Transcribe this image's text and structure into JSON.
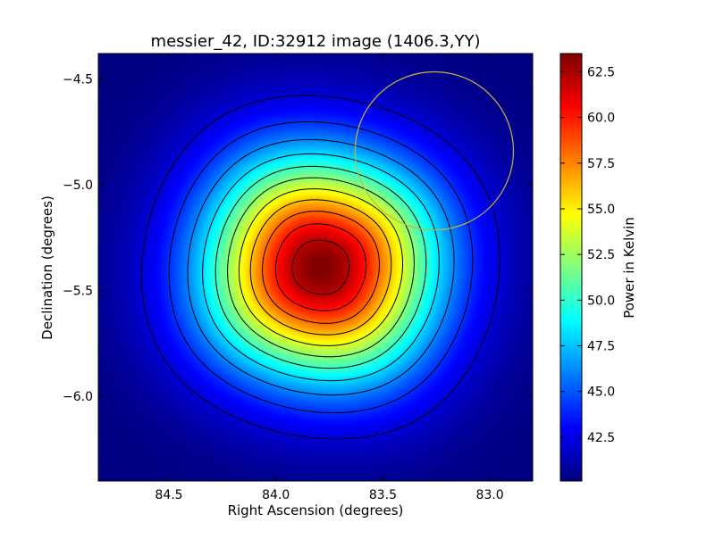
{
  "chart_data": {
    "type": "heatmap",
    "title": "messier_42, ID:32912 image (1406.3,YY)",
    "xlabel": "Right Ascension (degrees)",
    "ylabel": "Declination (degrees)",
    "colorbar_label": "Power in Kelvin",
    "colormap": "jet",
    "x_inverted": true,
    "xlim": [
      84.83,
      82.8
    ],
    "ylim": [
      -6.4,
      -4.38
    ],
    "x_ticks": [
      {
        "value": 84.5,
        "label": "84.5"
      },
      {
        "value": 84.0,
        "label": "84.0"
      },
      {
        "value": 83.5,
        "label": "83.5"
      },
      {
        "value": 83.0,
        "label": "83.0"
      }
    ],
    "y_ticks": [
      {
        "value": -4.5,
        "label": "−4.5"
      },
      {
        "value": -5.0,
        "label": "−5.0"
      },
      {
        "value": -5.5,
        "label": "−5.5"
      },
      {
        "value": -6.0,
        "label": "−6.0"
      }
    ],
    "colorbar_range": [
      40.1,
      63.5
    ],
    "colorbar_ticks": [
      {
        "value": 42.5,
        "label": "42.5"
      },
      {
        "value": 45.0,
        "label": "45.0"
      },
      {
        "value": 47.5,
        "label": "47.5"
      },
      {
        "value": 50.0,
        "label": "50.0"
      },
      {
        "value": 52.5,
        "label": "52.5"
      },
      {
        "value": 55.0,
        "label": "55.0"
      },
      {
        "value": 57.5,
        "label": "57.5"
      },
      {
        "value": 60.0,
        "label": "60.0"
      },
      {
        "value": 62.5,
        "label": "62.5"
      }
    ],
    "peak": {
      "ra": 83.79,
      "dec": -5.39,
      "value": 63.5
    },
    "background_level": 40.1,
    "contour_levels": [
      42.1,
      44.1,
      46.1,
      48.1,
      50.1,
      52.1,
      54.1,
      56.1,
      58.1,
      60.1,
      62.1
    ],
    "circle": {
      "ra": 83.26,
      "dec": -4.84,
      "radius_deg": 0.37,
      "color": "#c8b43c"
    },
    "contour_color": "#000000",
    "grid": false
  }
}
